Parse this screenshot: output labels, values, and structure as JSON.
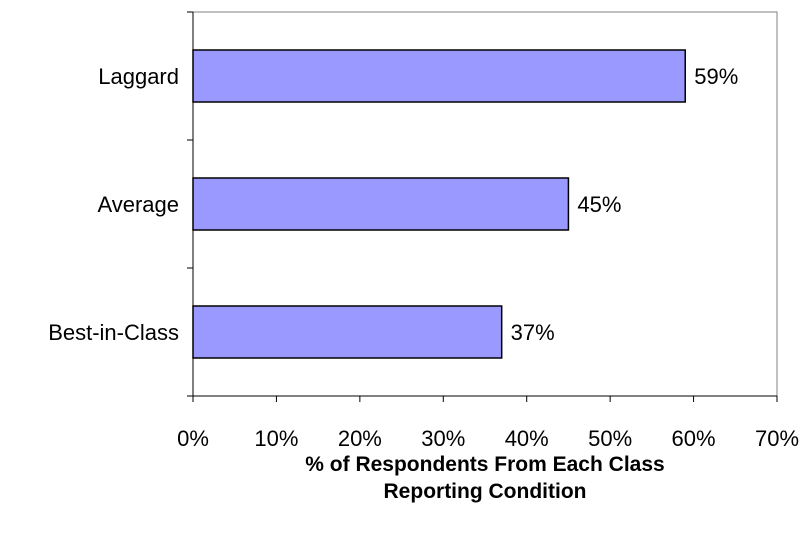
{
  "chart_data": {
    "type": "bar",
    "orientation": "horizontal",
    "categories": [
      "Laggard",
      "Average",
      "Best-in-Class"
    ],
    "values": [
      59,
      45,
      37
    ],
    "data_labels": [
      "59%",
      "45%",
      "37%"
    ],
    "xlim": [
      0,
      70
    ],
    "x_ticks": [
      0,
      10,
      20,
      30,
      40,
      50,
      60,
      70
    ],
    "x_tick_labels": [
      "0%",
      "10%",
      "20%",
      "30%",
      "40%",
      "50%",
      "60%",
      "70%"
    ],
    "xlabel_lines": [
      "% of Respondents From Each Class",
      "Reporting Condition"
    ],
    "ylabel": "",
    "title": "",
    "grid": false,
    "legend": "none",
    "colors": {
      "bar_fill": "#9999ff",
      "bar_stroke": "#000000",
      "plot_border": "#808080",
      "axis": "#000000"
    }
  }
}
